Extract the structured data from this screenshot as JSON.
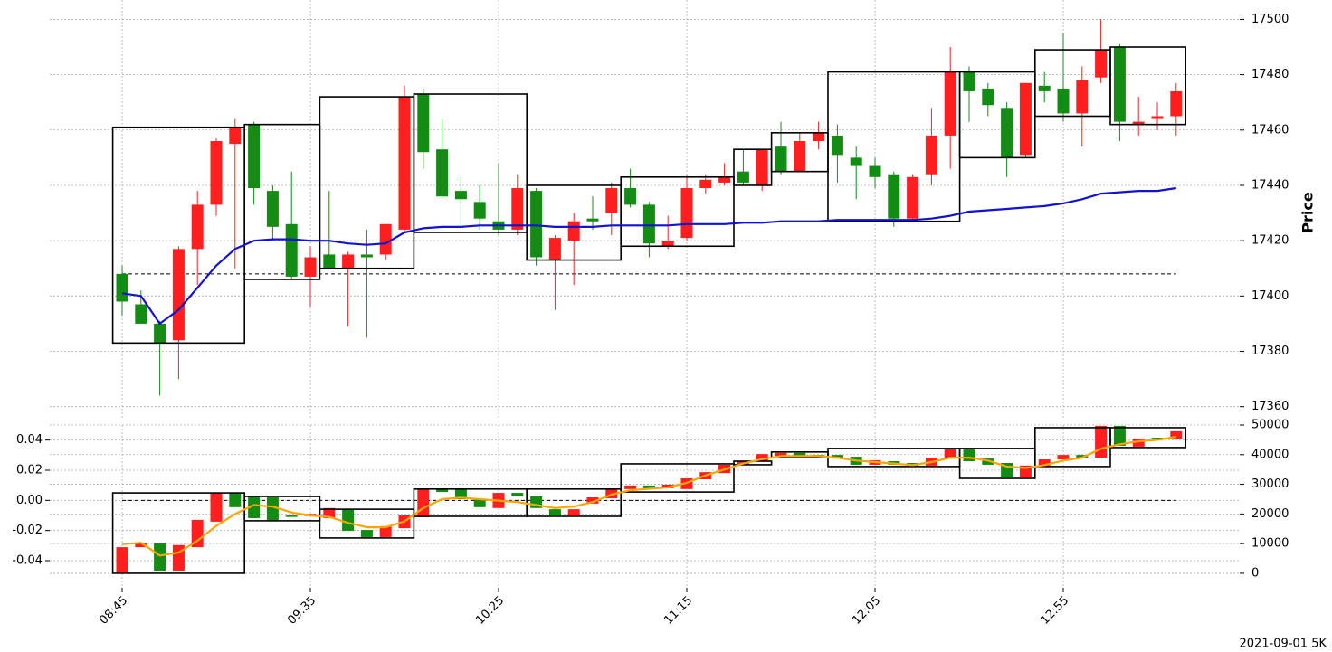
{
  "chart_data": [
    {
      "type": "candlestick",
      "ylabel": "Price",
      "y_axis_side": "right",
      "grid": true,
      "up_color": "#ff1f1f",
      "down_color": "#138c13",
      "categories": [
        "08:45",
        "08:50",
        "08:55",
        "09:00",
        "09:05",
        "09:10",
        "09:15",
        "09:20",
        "09:25",
        "09:30",
        "09:35",
        "09:40",
        "09:45",
        "09:50",
        "09:55",
        "10:00",
        "10:05",
        "10:10",
        "10:15",
        "10:20",
        "10:25",
        "10:30",
        "10:35",
        "10:40",
        "10:45",
        "10:50",
        "10:55",
        "11:00",
        "11:05",
        "11:10",
        "11:15",
        "11:20",
        "11:25",
        "11:30",
        "11:35",
        "11:40",
        "11:45",
        "11:50",
        "11:55",
        "12:00",
        "12:05",
        "12:10",
        "12:15",
        "12:20",
        "12:25",
        "12:30",
        "12:35",
        "12:40",
        "12:45",
        "12:50",
        "12:55",
        "13:00",
        "13:05",
        "13:10",
        "13:15",
        "13:20",
        "13:25"
      ],
      "open": [
        17408,
        17397,
        17390,
        17384,
        17417,
        17433,
        17455,
        17462,
        17438,
        17426,
        17407,
        17415,
        17410,
        17415,
        17415,
        17424,
        17473,
        17453,
        17438,
        17434,
        17427,
        17424,
        17438,
        17413,
        17420,
        17428,
        17430,
        17439,
        17433,
        17418,
        17421,
        17439,
        17441,
        17445,
        17440,
        17454,
        17445,
        17456,
        17458,
        17450,
        17447,
        17444,
        17428,
        17444,
        17458,
        17481,
        17475,
        17468,
        17451,
        17476,
        17475,
        17466,
        17479,
        17490,
        17462,
        17464,
        17465
      ],
      "high": [
        17411,
        17402,
        17391,
        17418,
        17438,
        17457,
        17464,
        17463,
        17440,
        17445,
        17418,
        17438,
        17416,
        17424,
        17426,
        17476,
        17475,
        17464,
        17443,
        17440,
        17448,
        17444,
        17439,
        17422,
        17430,
        17436,
        17441,
        17446,
        17434,
        17429,
        17444,
        17444,
        17448,
        17453,
        17453,
        17463,
        17459,
        17463,
        17462,
        17454,
        17450,
        17445,
        17444,
        17468,
        17490,
        17483,
        17477,
        17470,
        17477,
        17481,
        17495,
        17483,
        17500,
        17491,
        17472,
        17470,
        17477
      ],
      "low": [
        17393,
        17390,
        17364,
        17370,
        17404,
        17429,
        17410,
        17433,
        17420,
        17406,
        17396,
        17410,
        17389,
        17385,
        17413,
        17423,
        17446,
        17435,
        17425,
        17424,
        17422,
        17422,
        17411,
        17395,
        17404,
        17424,
        17422,
        17432,
        17414,
        17417,
        17420,
        17437,
        17440,
        17440,
        17438,
        17444,
        17445,
        17453,
        17441,
        17435,
        17439,
        17425,
        17427,
        17440,
        17446,
        17463,
        17465,
        17443,
        17450,
        17470,
        17463,
        17454,
        17477,
        17456,
        17458,
        17460,
        17458
      ],
      "close": [
        17398,
        17390,
        17383,
        17417,
        17433,
        17456,
        17461,
        17439,
        17425,
        17407,
        17414,
        17410,
        17415,
        17414,
        17426,
        17472,
        17452,
        17436,
        17435,
        17428,
        17424,
        17439,
        17414,
        17421,
        17427,
        17427,
        17439,
        17433,
        17419,
        17420,
        17439,
        17442,
        17443,
        17441,
        17453,
        17445,
        17456,
        17459,
        17451,
        17447,
        17443,
        17428,
        17443,
        17458,
        17481,
        17474,
        17469,
        17450,
        17477,
        17474,
        17466,
        17478,
        17489,
        17463,
        17463,
        17465,
        17474
      ],
      "line": {
        "color": "#1212d0",
        "values": [
          17401,
          17400,
          17390,
          17395,
          17403,
          17411,
          17417,
          17420,
          17420.5,
          17420.5,
          17420,
          17420,
          17419,
          17418.5,
          17419,
          17423,
          17424.5,
          17425,
          17425,
          17425.5,
          17425.5,
          17425.5,
          17425.5,
          17425,
          17425,
          17425,
          17425.5,
          17425.5,
          17425.5,
          17425.5,
          17426,
          17426,
          17426,
          17426.5,
          17426.5,
          17427,
          17427,
          17427,
          17427.5,
          17427.5,
          17427.5,
          17427.5,
          17427.5,
          17428,
          17429,
          17430.5,
          17431,
          17431.5,
          17432,
          17432.5,
          17433.5,
          17435,
          17437,
          17437.5,
          17438,
          17438,
          17439
        ]
      },
      "hline": 17408,
      "boxes": [
        {
          "start": "08:45",
          "end": "09:15",
          "low": 17383,
          "high": 17461
        },
        {
          "start": "09:20",
          "end": "09:35",
          "low": 17406,
          "high": 17462
        },
        {
          "start": "09:40",
          "end": "10:00",
          "low": 17410,
          "high": 17472
        },
        {
          "start": "10:05",
          "end": "10:30",
          "low": 17423,
          "high": 17473
        },
        {
          "start": "10:35",
          "end": "10:55",
          "low": 17413,
          "high": 17440
        },
        {
          "start": "11:00",
          "end": "11:25",
          "low": 17418,
          "high": 17443
        },
        {
          "start": "11:30",
          "end": "11:35",
          "low": 17440,
          "high": 17453
        },
        {
          "start": "11:40",
          "end": "11:50",
          "low": 17445,
          "high": 17459
        },
        {
          "start": "11:55",
          "end": "12:25",
          "low": 17427,
          "high": 17481
        },
        {
          "start": "12:30",
          "end": "12:45",
          "low": 17450,
          "high": 17481
        },
        {
          "start": "12:50",
          "end": "13:05",
          "low": 17465,
          "high": 17489
        },
        {
          "start": "13:10",
          "end": "13:25",
          "low": 17462,
          "high": 17490
        }
      ],
      "ylim": [
        17355,
        17507
      ],
      "yticks": [
        17360,
        17380,
        17400,
        17420,
        17440,
        17460,
        17480,
        17500
      ]
    },
    {
      "type": "candlestick",
      "caption": "2021-09-01 5K",
      "grid": true,
      "up_color": "#ff1f1f",
      "down_color": "#138c13",
      "categories": [
        "08:45",
        "08:50",
        "08:55",
        "09:00",
        "09:05",
        "09:10",
        "09:15",
        "09:20",
        "09:25",
        "09:30",
        "09:35",
        "09:40",
        "09:45",
        "09:50",
        "09:55",
        "10:00",
        "10:05",
        "10:10",
        "10:15",
        "10:20",
        "10:25",
        "10:30",
        "10:35",
        "10:40",
        "10:45",
        "10:50",
        "10:55",
        "11:00",
        "11:05",
        "11:10",
        "11:15",
        "11:20",
        "11:25",
        "11:30",
        "11:35",
        "11:40",
        "11:45",
        "11:50",
        "11:55",
        "12:00",
        "12:05",
        "12:10",
        "12:15",
        "12:20",
        "12:25",
        "12:30",
        "12:35",
        "12:40",
        "12:45",
        "12:50",
        "12:55",
        "13:00",
        "13:05",
        "13:10",
        "13:15",
        "13:20",
        "13:25"
      ],
      "xticks": [
        "08:45",
        "09:35",
        "10:25",
        "11:15",
        "12:05",
        "12:55"
      ],
      "axis": "y2",
      "open": [
        300,
        8800,
        10300,
        900,
        8800,
        17400,
        27100,
        26200,
        25600,
        19500,
        19300,
        18600,
        21600,
        14600,
        12200,
        15200,
        18900,
        28400,
        28400,
        25000,
        22000,
        27100,
        25900,
        21600,
        19500,
        23500,
        25300,
        28400,
        29600,
        28700,
        28400,
        31700,
        33800,
        36600,
        37800,
        39600,
        40600,
        39900,
        39900,
        39300,
        36600,
        37800,
        37200,
        36300,
        38700,
        41800,
        38700,
        37200,
        32300,
        36300,
        38400,
        39900,
        39000,
        49700,
        42700,
        45700,
        45400
      ],
      "close": [
        8800,
        10300,
        900,
        9500,
        18000,
        27100,
        22300,
        18600,
        17700,
        19000,
        20000,
        22000,
        14300,
        12200,
        15900,
        19500,
        28400,
        27400,
        25000,
        22300,
        27100,
        25900,
        22000,
        19500,
        21600,
        25600,
        28400,
        29600,
        28400,
        29900,
        32000,
        34100,
        36600,
        37800,
        40200,
        40600,
        39600,
        39000,
        38700,
        36600,
        38100,
        36600,
        36300,
        39000,
        41800,
        37800,
        36600,
        32300,
        36300,
        38400,
        39900,
        39000,
        49700,
        43000,
        45400,
        45100,
        47900
      ],
      "line": {
        "color": "#ffa500",
        "values": [
          9800,
          10300,
          6000,
          7000,
          11000,
          16000,
          20000,
          23000,
          22500,
          20500,
          19500,
          19000,
          17000,
          15500,
          15500,
          17500,
          22000,
          25000,
          25500,
          25000,
          24500,
          24000,
          23000,
          22000,
          22500,
          24000,
          26500,
          28000,
          28500,
          29000,
          30500,
          33000,
          35000,
          37000,
          38500,
          39500,
          39500,
          39500,
          39000,
          38000,
          37500,
          37000,
          36500,
          37500,
          39000,
          39000,
          38000,
          36000,
          35500,
          36500,
          38000,
          39000,
          42000,
          43500,
          44500,
          45000,
          46000
        ]
      },
      "hline": 0,
      "boxes": [
        {
          "start": "08:45",
          "end": "09:15",
          "low": 0,
          "high": 27100
        },
        {
          "start": "09:20",
          "end": "09:35",
          "low": 17700,
          "high": 25900
        },
        {
          "start": "09:40",
          "end": "10:00",
          "low": 11900,
          "high": 21600
        },
        {
          "start": "10:05",
          "end": "10:30",
          "low": 19200,
          "high": 28400
        },
        {
          "start": "10:35",
          "end": "10:55",
          "low": 19200,
          "high": 28400
        },
        {
          "start": "11:00",
          "end": "11:25",
          "low": 27400,
          "high": 36900
        },
        {
          "start": "11:30",
          "end": "11:35",
          "low": 36600,
          "high": 37800
        },
        {
          "start": "11:40",
          "end": "11:50",
          "low": 39000,
          "high": 40900
        },
        {
          "start": "11:55",
          "end": "12:25",
          "low": 36000,
          "high": 42100
        },
        {
          "start": "12:30",
          "end": "12:45",
          "low": 32000,
          "high": 42100
        },
        {
          "start": "12:50",
          "end": "13:05",
          "low": 36000,
          "high": 49100
        },
        {
          "start": "13:10",
          "end": "13:25",
          "low": 42400,
          "high": 49100
        }
      ],
      "ylim": [
        -0.058,
        0.05
      ],
      "yticks": [
        -0.04,
        -0.02,
        {
          "value": 0,
          "label": "0.00"
        },
        0.02,
        0.04
      ],
      "y2lim": [
        -4900,
        50000
      ],
      "y2ticks": [
        0,
        10000,
        20000,
        30000,
        40000,
        50000
      ]
    }
  ]
}
